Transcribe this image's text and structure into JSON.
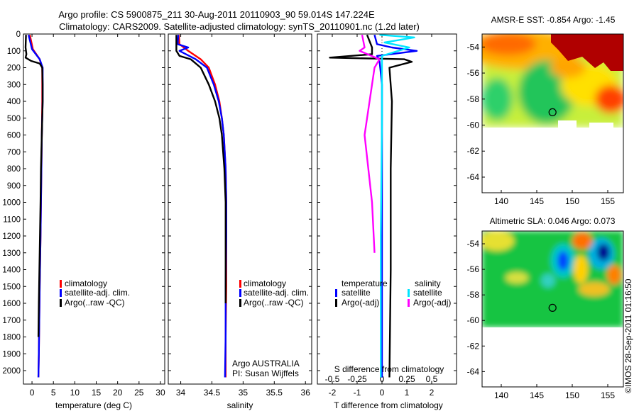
{
  "header": {
    "line1": "Argo profile: CS 5900875_211 30-Aug-2011 20110903_90 59.014S 147.224E",
    "line2": "Climatology: CARS2009. Satellite-adjusted climatology: synTS_20110901.nc (1.2d later)"
  },
  "credit": "©IMOS 28-Sep-2011 01:16:50",
  "colors": {
    "red": "#ff0000",
    "blue": "#0000ff",
    "black": "#000000",
    "cyan": "#00e5ff",
    "magenta": "#ff00ff"
  },
  "chart_data": [
    {
      "type": "line",
      "id": "temperature",
      "xlabel": "temperature (deg C)",
      "xlim": [
        -2,
        31
      ],
      "ylim": [
        2080,
        0
      ],
      "xticks": [
        0,
        5,
        10,
        15,
        20,
        25,
        30
      ],
      "yticks": [
        0,
        100,
        200,
        300,
        400,
        500,
        600,
        700,
        800,
        900,
        1000,
        1100,
        1200,
        1300,
        1400,
        1500,
        1600,
        1700,
        1800,
        1900,
        2000
      ],
      "legend": [
        "climatology",
        "satellite-adj. clim.",
        "Argo(..raw -QC)"
      ],
      "series": [
        {
          "name": "climatology",
          "color": "red",
          "x": [
            -0.5,
            0.2,
            1.8,
            2.4,
            2.4,
            2.3,
            2.2,
            2.1,
            2.0,
            1.8,
            1.7,
            1.6,
            1.5
          ],
          "y": [
            5,
            90,
            150,
            200,
            400,
            600,
            800,
            1000,
            1200,
            1500,
            1700,
            1900,
            2040
          ]
        },
        {
          "name": "satellite-adj. clim.",
          "color": "blue",
          "x": [
            -0.8,
            0.0,
            1.8,
            2.5,
            2.5,
            2.3,
            2.2,
            2.1,
            2.0,
            1.8,
            1.7,
            1.6,
            1.5
          ],
          "y": [
            5,
            90,
            150,
            200,
            400,
            600,
            800,
            1000,
            1200,
            1500,
            1700,
            1900,
            2040
          ]
        },
        {
          "name": "Argo(..raw -QC)",
          "color": "black",
          "x": [
            -1.4,
            -1.5,
            -1.3,
            -1.5,
            -0.2,
            1.8,
            2.4,
            2.5,
            2.5,
            2.3,
            2.1,
            2.0,
            1.8,
            1.6,
            1.5
          ],
          "y": [
            5,
            80,
            120,
            140,
            160,
            175,
            200,
            300,
            400,
            600,
            800,
            1000,
            1300,
            1600,
            1800
          ]
        }
      ]
    },
    {
      "type": "line",
      "id": "salinity",
      "xlabel": "salinity",
      "xlim": [
        33.8,
        36.1
      ],
      "ylim": [
        2080,
        0
      ],
      "xticks": [
        34,
        34.5,
        35,
        35.5,
        36
      ],
      "legend": [
        "climatology",
        "satellite-adj. clim.",
        "Argo(..raw -QC)"
      ],
      "annotation": [
        "Argo AUSTRALIA",
        "PI: Susan Wijffels"
      ],
      "series": [
        {
          "name": "climatology",
          "color": "red",
          "x": [
            33.97,
            33.98,
            34.12,
            34.32,
            34.45,
            34.55,
            34.62,
            34.66,
            34.69,
            34.72,
            34.73,
            34.73,
            34.73,
            34.72,
            34.72
          ],
          "y": [
            5,
            60,
            100,
            150,
            200,
            300,
            400,
            500,
            600,
            800,
            1000,
            1200,
            1500,
            1800,
            2040
          ]
        },
        {
          "name": "satellite-adj. clim.",
          "color": "blue",
          "x": [
            33.96,
            33.95,
            34.12,
            33.98,
            34.24,
            34.42,
            34.53,
            34.61,
            34.66,
            34.69,
            34.72,
            34.73,
            34.73,
            34.72,
            34.72,
            34.71
          ],
          "y": [
            5,
            60,
            80,
            100,
            150,
            200,
            300,
            400,
            500,
            600,
            800,
            1000,
            1200,
            1500,
            1800,
            2040
          ]
        },
        {
          "name": "Argo(..raw -QC)",
          "color": "black",
          "x": [
            33.93,
            33.93,
            33.98,
            34.16,
            34.32,
            34.45,
            34.55,
            34.62,
            34.66,
            34.7,
            34.72,
            34.72,
            34.72
          ],
          "y": [
            5,
            100,
            130,
            150,
            200,
            300,
            400,
            500,
            600,
            800,
            1000,
            1300,
            1600
          ]
        }
      ]
    },
    {
      "type": "line",
      "id": "differences",
      "xlabel": "T difference from climatology",
      "xlabel_top": "S difference from climatology",
      "xlim": [
        -2.6,
        3.0
      ],
      "ylim": [
        2080,
        0
      ],
      "xticks": [
        -2,
        -1,
        0,
        1,
        2
      ],
      "xticks_top": [
        -0.5,
        -0.25,
        0,
        0.25,
        0.5
      ],
      "legend_titles": [
        "temperature",
        "salinity"
      ],
      "legend": [
        "satellite",
        "Argo(-adj)",
        "satellite",
        "Argo(-adj)"
      ],
      "series": [
        {
          "name": "satellite",
          "group": "temperature",
          "color": "blue",
          "x": [
            -0.3,
            -0.2,
            0.4,
            1.4,
            -0.2,
            -0.1,
            0,
            0,
            0,
            0
          ],
          "y": [
            5,
            60,
            80,
            100,
            130,
            160,
            300,
            600,
            1200,
            2040
          ]
        },
        {
          "name": "Argo(-adj)",
          "group": "temperature",
          "color": "black",
          "x": [
            -0.6,
            -0.4,
            -0.4,
            -2.1,
            0.9,
            1.2,
            0.3,
            0.4,
            0.35,
            0.35,
            0.3
          ],
          "y": [
            5,
            80,
            120,
            140,
            150,
            165,
            200,
            400,
            800,
            1400,
            2040
          ]
        },
        {
          "name": "satellite",
          "group": "salinity",
          "color": "cyan",
          "x": [
            -0.1,
            1.3,
            0.1,
            1.1,
            0.0,
            0.0,
            0.0,
            -0.05,
            -0.05
          ],
          "y": [
            5,
            20,
            50,
            80,
            130,
            200,
            500,
            1200,
            2040
          ]
        },
        {
          "name": "Argo(-adj)",
          "group": "salinity",
          "color": "magenta",
          "x": [
            -0.8,
            -0.7,
            -0.9,
            -0.1,
            -0.3,
            -0.5,
            -0.7,
            -0.4,
            -0.3
          ],
          "y": [
            5,
            80,
            100,
            150,
            200,
            400,
            600,
            1000,
            1300
          ]
        }
      ]
    },
    {
      "type": "heatmap",
      "id": "sst-map",
      "title": "AMSR-E SST: -0.854 Argo: -1.45",
      "xlim": [
        137.3,
        157.2
      ],
      "ylim": [
        -65.2,
        -53.0
      ],
      "xticks": [
        140,
        145,
        150,
        155
      ],
      "yticks": [
        -54,
        -56,
        -58,
        -60,
        -62,
        -64
      ],
      "argo_position": {
        "lon": 147.224,
        "lat": -59.014
      }
    },
    {
      "type": "heatmap",
      "id": "sla-map",
      "title": "Altimetric SLA: 0.046 Argo: 0.073",
      "xlim": [
        137.3,
        157.2
      ],
      "ylim": [
        -65.2,
        -53.0
      ],
      "xticks": [
        140,
        145,
        150,
        155
      ],
      "yticks": [
        -54,
        -56,
        -58,
        -60,
        -62,
        -64
      ],
      "argo_position": {
        "lon": 147.224,
        "lat": -59.014
      }
    }
  ]
}
